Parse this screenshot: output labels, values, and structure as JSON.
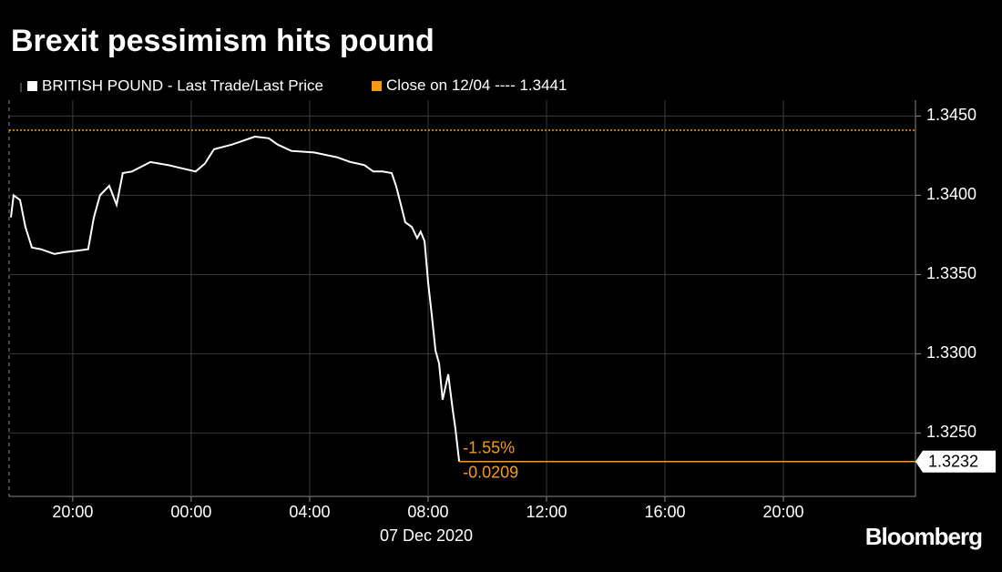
{
  "chart_data": {
    "type": "line",
    "title": "Brexit pessimism hits pound",
    "x_label": "07 Dec 2020",
    "source": "Bloomberg",
    "xlim": [
      -6.15,
      24.46
    ],
    "xticks": [
      {
        "value": -4,
        "label": "20:00"
      },
      {
        "value": 0,
        "label": "00:00"
      },
      {
        "value": 4,
        "label": "04:00"
      },
      {
        "value": 8,
        "label": "08:00"
      },
      {
        "value": 12,
        "label": "12:00"
      },
      {
        "value": 16,
        "label": "16:00"
      },
      {
        "value": 20,
        "label": "20:00"
      }
    ],
    "ylim": [
      1.321,
      1.346
    ],
    "yticks": [
      {
        "value": 1.325,
        "label": "1.3250"
      },
      {
        "value": 1.33,
        "label": "1.3300"
      },
      {
        "value": 1.335,
        "label": "1.3350"
      },
      {
        "value": 1.34,
        "label": "1.3400"
      },
      {
        "value": 1.345,
        "label": "1.3450"
      }
    ],
    "grid": true,
    "series": [
      {
        "name": "BRITISH POUND - Last Trade/Last Price",
        "color": "#ffffff",
        "x": [
          -6.09,
          -6.0,
          -5.78,
          -5.6,
          -5.38,
          -5.08,
          -4.62,
          -4.31,
          -3.85,
          -3.48,
          -3.29,
          -3.08,
          -2.77,
          -2.52,
          -2.31,
          -2.0,
          -1.38,
          -0.77,
          -0.31,
          0.15,
          0.46,
          0.77,
          1.38,
          2.15,
          2.62,
          2.92,
          3.38,
          4.15,
          4.92,
          5.38,
          5.85,
          6.15,
          6.46,
          6.77,
          6.92,
          7.08,
          7.23,
          7.45,
          7.63,
          7.75,
          7.88,
          8.0,
          8.12,
          8.25,
          8.37,
          8.49,
          8.68,
          8.83,
          8.92,
          9.05
        ],
        "values": [
          1.3386,
          1.34,
          1.3397,
          1.338,
          1.3367,
          1.3366,
          1.3363,
          1.3364,
          1.3365,
          1.3366,
          1.3386,
          1.34,
          1.3406,
          1.3394,
          1.3414,
          1.3415,
          1.3421,
          1.3419,
          1.3417,
          1.3415,
          1.342,
          1.3429,
          1.3432,
          1.3437,
          1.3436,
          1.3432,
          1.3428,
          1.3427,
          1.3424,
          1.3421,
          1.3419,
          1.3415,
          1.3415,
          1.3414,
          1.3406,
          1.3394,
          1.3383,
          1.338,
          1.3373,
          1.3377,
          1.3371,
          1.3345,
          1.3325,
          1.3302,
          1.3294,
          1.3271,
          1.3287,
          1.3265,
          1.3253,
          1.3232
        ]
      }
    ],
    "reference": {
      "name": "Close on 12/04 ----",
      "value": 1.3441,
      "color": "#f39c12"
    },
    "annotations": [
      "-1.55%",
      "-0.0209"
    ]
  }
}
